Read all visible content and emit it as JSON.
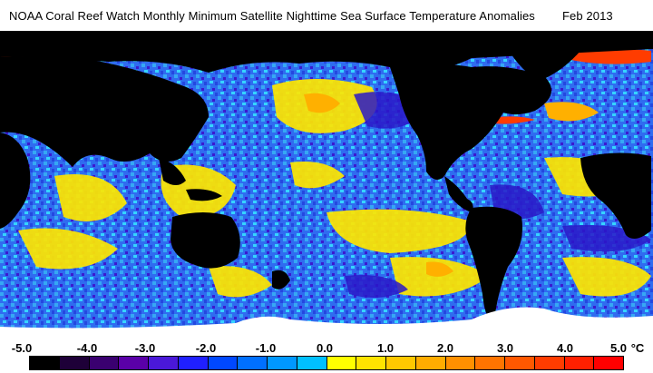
{
  "header": {
    "title": "NOAA Coral Reef Watch Monthly Minimum Satellite Nighttime Sea Surface Temperature Anomalies",
    "date": "Feb 2013"
  },
  "map": {
    "land_color": "#000000",
    "ice_color": "#ffffff",
    "ocean_palette": {
      "cold_deep": "#3a1ad0",
      "cold": "#2f62f0",
      "cool": "#36a8f4",
      "neutral": "#36d4ff",
      "warm": "#fff200",
      "warmer": "#ffc400",
      "hot": "#ff7a00",
      "hottest": "#ff1e00"
    }
  },
  "scale": {
    "labels": [
      "-5.0",
      "-4.0",
      "-3.0",
      "-2.0",
      "-1.0",
      "0.0",
      "1.0",
      "2.0",
      "3.0",
      "4.0",
      "5.0"
    ],
    "unit": "°C",
    "colors": [
      "#000000",
      "#1e0038",
      "#3a0070",
      "#5a00a8",
      "#4a18d8",
      "#2020ff",
      "#0048ff",
      "#0070ff",
      "#0098ff",
      "#00c0ff",
      "#ffff00",
      "#ffe400",
      "#ffc800",
      "#ffac00",
      "#ff9000",
      "#ff7400",
      "#ff5800",
      "#ff3c00",
      "#ff2000",
      "#ff0000"
    ]
  }
}
